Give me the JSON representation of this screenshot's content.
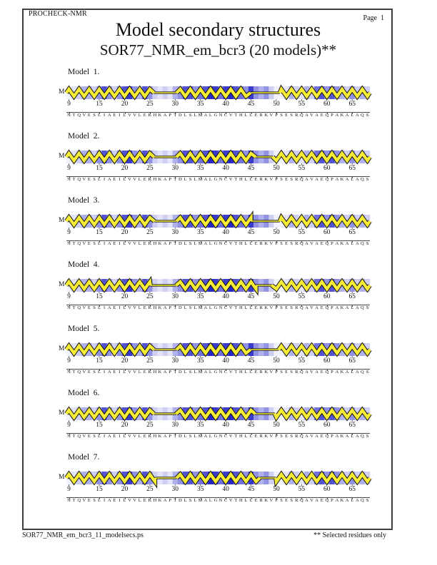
{
  "header": {
    "app": "PROCHECK-NMR",
    "page_label": "Page  1"
  },
  "footer": {
    "filename": "SOR77_NMR_em_bcr3_11_modelsecs.ps",
    "note": "** Selected residues only"
  },
  "colors": {
    "helix": "#f6ec35",
    "outline": "#161616",
    "axis": "#4a4a4a",
    "shade_palette": [
      "#ffffff",
      "#f2f2fc",
      "#e3e3f9",
      "#cfcff4",
      "#b0b0ec",
      "#9292e4",
      "#7272da",
      "#5353d2",
      "#3b3bcb",
      "#2828c4"
    ]
  },
  "chart_data": {
    "type": "heatmap",
    "title": "Model secondary structures",
    "subtitle": "SOR77_NMR_em_bcr3 (20 models)**",
    "x_start_residue": 9,
    "x_end_residue": 68,
    "x_ticks": [
      9,
      15,
      20,
      25,
      30,
      35,
      40,
      45,
      50,
      55,
      60,
      65
    ],
    "left_label": "M",
    "sequence": "NTQVESLIAEILVVLEKHKAPTDLSLMALGNCVTHLLERKVPSESRQAVAEQPAKALAQS",
    "shading_levels": [
      1,
      2,
      3,
      4,
      4,
      3,
      5,
      7,
      5,
      3,
      5,
      7,
      8,
      5,
      4,
      7,
      5,
      3,
      2,
      3,
      2,
      4,
      5,
      7,
      7,
      5,
      6,
      7,
      9,
      8,
      6,
      8,
      9,
      7,
      6,
      5,
      8,
      5,
      4,
      5,
      3,
      1,
      1,
      2,
      4,
      3,
      2,
      4,
      3,
      6,
      7,
      5,
      7,
      5,
      4,
      3,
      5,
      3,
      4,
      3
    ],
    "legend": "yellow ribbon = helix, thin line = coil; blue shading per residue",
    "models": [
      {
        "label": "Model  1.",
        "segments": [
          [
            "helix",
            9,
            26.3
          ],
          [
            "coil",
            26.3,
            30.8
          ],
          [
            "helix",
            30.8,
            45.4
          ],
          [
            "coil",
            45.4,
            51.2
          ],
          [
            "helix",
            51.2,
            69
          ]
        ]
      },
      {
        "label": "Model  2.",
        "segments": [
          [
            "helix",
            9,
            26.3
          ],
          [
            "coil",
            26.3,
            30.8
          ],
          [
            "helix",
            30.8,
            46.4
          ],
          [
            "coil",
            46.4,
            49.8
          ],
          [
            "helix",
            49.8,
            69
          ]
        ]
      },
      {
        "label": "Model  3.",
        "segments": [
          [
            "helix",
            9,
            26.4
          ],
          [
            "coil",
            26.4,
            30.8
          ],
          [
            "helix",
            30.8,
            45.5
          ],
          [
            "coil",
            45.5,
            51.2
          ],
          [
            "helix",
            51.2,
            69
          ]
        ]
      },
      {
        "label": "Model  4.",
        "segments": [
          [
            "helix",
            9,
            25.6
          ],
          [
            "coil",
            25.6,
            30.7
          ],
          [
            "helix",
            30.7,
            46.5
          ],
          [
            "coil",
            46.5,
            49.6
          ],
          [
            "helix",
            49.6,
            69
          ]
        ]
      },
      {
        "label": "Model  5.",
        "segments": [
          [
            "helix",
            9,
            26.3
          ],
          [
            "coil",
            26.3,
            30.8
          ],
          [
            "helix",
            30.8,
            45.4
          ],
          [
            "coil",
            45.4,
            51.0
          ],
          [
            "helix",
            51.0,
            69
          ]
        ]
      },
      {
        "label": "Model  6.",
        "segments": [
          [
            "helix",
            9,
            26.3
          ],
          [
            "coil",
            26.3,
            30.7
          ],
          [
            "helix",
            30.7,
            46.3
          ],
          [
            "coil",
            46.3,
            50.2
          ],
          [
            "helix",
            50.2,
            69
          ]
        ]
      },
      {
        "label": "Model  7.",
        "segments": [
          [
            "helix",
            9,
            26.5
          ],
          [
            "coil",
            26.5,
            30.8
          ],
          [
            "helix",
            30.8,
            47.2
          ],
          [
            "coil",
            47.2,
            50.4
          ],
          [
            "helix",
            50.4,
            69
          ]
        ]
      }
    ]
  }
}
